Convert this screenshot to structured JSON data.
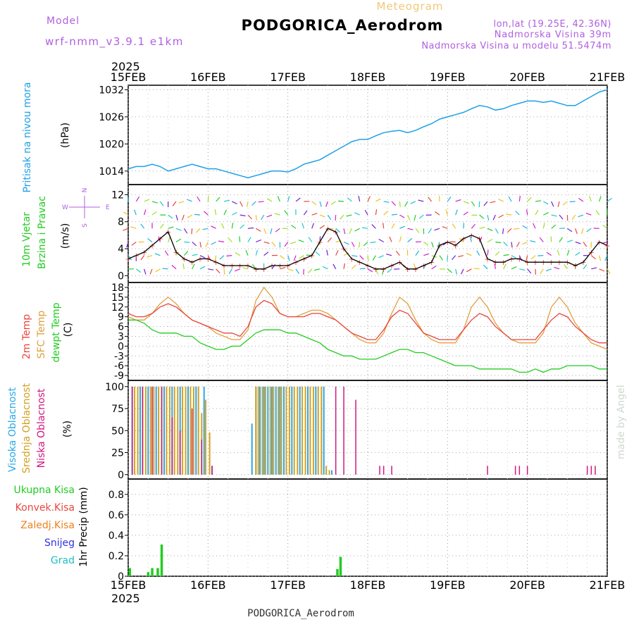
{
  "header": {
    "meteogram_label": "Meteogram",
    "station_title": "PODGORICA_Aerodrom",
    "model_label": "Model",
    "model_name": "wrf-nmm_v3.9.1 e1km",
    "lonlat": "lon,lat (19.25E, 42.36N)",
    "elevation": "Nadmorska Visina 39m",
    "model_elevation": "Nadmorska Visina u modelu 51.5474m",
    "year_top": "2025",
    "year_bottom": "2025",
    "footer_title": "PODGORICA_Aerodrom",
    "credit": "made by Angel"
  },
  "compass": {
    "n": "N",
    "s": "S",
    "w": "W",
    "e": "E"
  },
  "colors": {
    "pressure": "#1ea0e6",
    "wind_speed": "#000000",
    "temp2m": "#e8463c",
    "sfc_temp": "#e0a040",
    "dewpoint": "#22cc22",
    "high_cloud": "#2aa8e8",
    "mid_cloud": "#d4a020",
    "low_cloud": "#d01880",
    "total_precip": "#22cc22",
    "conv_precip": "#e8463c",
    "freezing_precip": "#f08020",
    "snow": "#3030e0",
    "hail": "#20c0c0"
  },
  "x_axis": {
    "ticks": [
      "15FEB",
      "16FEB",
      "17FEB",
      "18FEB",
      "19FEB",
      "20FEB",
      "21FEB"
    ]
  },
  "panels": {
    "pressure": {
      "label_1": "Pritisak na nivou mora",
      "unit": "(hPa)"
    },
    "wind": {
      "label_1": "10m Vjetar",
      "label_2": "Brzina i Pravac",
      "unit": "(m/s)"
    },
    "temp": {
      "label_1": "2m Temp",
      "label_2": "SFC Temp",
      "label_3": "dewpt Temp",
      "unit": "(C)"
    },
    "cloud": {
      "label_1": "Visoka Oblacnost",
      "label_2": "Srednja Oblacnost",
      "label_3": "Niska Oblacnost",
      "unit": "(%)"
    },
    "precip": {
      "unit": "1hr Precip (mm)",
      "legend": [
        "Ukupna Kisa",
        "Konvek.Kisa",
        "Zaledj.Kisa",
        "Snijeg",
        "Grad"
      ]
    }
  },
  "chart_data": {
    "type": "line",
    "x_unit": "days since 15FEB 00:00",
    "pressure": {
      "ylim": [
        1011,
        1033
      ],
      "yticks": [
        "1014",
        "1020",
        "1026",
        "1032"
      ],
      "x": [
        0,
        0.1,
        0.2,
        0.3,
        0.4,
        0.5,
        0.6,
        0.7,
        0.8,
        0.9,
        1.0,
        1.1,
        1.2,
        1.3,
        1.4,
        1.5,
        1.6,
        1.7,
        1.8,
        1.9,
        2.0,
        2.1,
        2.2,
        2.3,
        2.4,
        2.5,
        2.6,
        2.7,
        2.8,
        2.9,
        3.0,
        3.1,
        3.2,
        3.3,
        3.4,
        3.5,
        3.6,
        3.7,
        3.8,
        3.9,
        4.0,
        4.1,
        4.2,
        4.3,
        4.4,
        4.5,
        4.6,
        4.7,
        4.8,
        4.9,
        5.0,
        5.1,
        5.2,
        5.3,
        5.4,
        5.5,
        5.6,
        5.7,
        5.8,
        5.9,
        6.0
      ],
      "values": [
        1014.5,
        1015,
        1015,
        1015.5,
        1015,
        1014,
        1014.5,
        1015,
        1015.5,
        1015,
        1014.5,
        1014.5,
        1014,
        1013.5,
        1013,
        1012.5,
        1013,
        1013.5,
        1014,
        1014,
        1013.8,
        1014.5,
        1015.5,
        1016,
        1016.5,
        1017.5,
        1018.5,
        1019.5,
        1020.5,
        1021,
        1021,
        1021.8,
        1022.5,
        1022.8,
        1023,
        1022.5,
        1023,
        1023.8,
        1024.5,
        1025.5,
        1026,
        1026.5,
        1027,
        1027.8,
        1028.5,
        1028.2,
        1027.5,
        1027.8,
        1028.5,
        1029,
        1029.5,
        1029.5,
        1029.2,
        1029.5,
        1029,
        1028.5,
        1028.5,
        1029.5,
        1030.5,
        1031.5,
        1032
      ]
    },
    "wind_speed": {
      "ylim": [
        -1,
        13.5
      ],
      "yticks": [
        "0",
        "4",
        "8",
        "12"
      ],
      "x": [
        0,
        0.1,
        0.2,
        0.3,
        0.4,
        0.5,
        0.6,
        0.7,
        0.8,
        0.9,
        1.0,
        1.1,
        1.2,
        1.3,
        1.4,
        1.5,
        1.6,
        1.7,
        1.8,
        1.9,
        2.0,
        2.1,
        2.2,
        2.3,
        2.4,
        2.5,
        2.6,
        2.7,
        2.8,
        2.9,
        3.0,
        3.1,
        3.2,
        3.3,
        3.4,
        3.5,
        3.6,
        3.7,
        3.8,
        3.9,
        4.0,
        4.1,
        4.2,
        4.3,
        4.4,
        4.5,
        4.6,
        4.7,
        4.8,
        4.9,
        5.0,
        5.1,
        5.2,
        5.3,
        5.4,
        5.5,
        5.6,
        5.7,
        5.8,
        5.9,
        6.0
      ],
      "values": [
        2.5,
        3,
        3.5,
        4.5,
        5.5,
        6.5,
        3.5,
        2.5,
        2,
        2.5,
        2.5,
        2,
        1.5,
        1.5,
        1.5,
        1.5,
        1,
        1,
        1.5,
        1.5,
        1.5,
        2,
        2.5,
        3,
        5,
        7,
        6.5,
        4,
        2.5,
        2,
        1.5,
        1,
        1,
        1.5,
        2,
        1,
        1,
        1.5,
        2,
        4.5,
        5,
        4.5,
        5.5,
        6,
        5.5,
        2.5,
        2,
        2,
        2.5,
        2.5,
        2,
        2,
        2,
        2,
        2,
        2,
        1.5,
        2,
        3.5,
        5,
        4.5
      ]
    },
    "sfc_temp": {
      "ylim": [
        -10.5,
        19.5
      ],
      "yticks": [
        "18",
        "15",
        "12",
        "9",
        "6",
        "3",
        "0",
        "-3",
        "-6",
        "-9"
      ],
      "x": [
        0,
        0.1,
        0.2,
        0.3,
        0.4,
        0.5,
        0.6,
        0.7,
        0.8,
        0.9,
        1.0,
        1.1,
        1.2,
        1.3,
        1.4,
        1.5,
        1.6,
        1.7,
        1.8,
        1.9,
        2.0,
        2.1,
        2.2,
        2.3,
        2.4,
        2.5,
        2.6,
        2.7,
        2.8,
        2.9,
        3.0,
        3.1,
        3.2,
        3.3,
        3.4,
        3.5,
        3.6,
        3.7,
        3.8,
        3.9,
        4.0,
        4.1,
        4.2,
        4.3,
        4.4,
        4.5,
        4.6,
        4.7,
        4.8,
        4.9,
        5.0,
        5.1,
        5.2,
        5.3,
        5.4,
        5.5,
        5.6,
        5.7,
        5.8,
        5.9,
        6.0
      ],
      "values": [
        9,
        8,
        8,
        10,
        13,
        15,
        13,
        10,
        8,
        7,
        6,
        4,
        3,
        2,
        2,
        5,
        14,
        18,
        15,
        10,
        9,
        9,
        10,
        11,
        11,
        10,
        8,
        6,
        4,
        2,
        1,
        1,
        4,
        10,
        15,
        13,
        8,
        4,
        2,
        1,
        1,
        1,
        5,
        12,
        15,
        12,
        7,
        4,
        2,
        1,
        1,
        1,
        4,
        12,
        15,
        12,
        7,
        4,
        1,
        0,
        -1
      ]
    },
    "temp_2m": {
      "x": [
        0,
        0.1,
        0.2,
        0.3,
        0.4,
        0.5,
        0.6,
        0.7,
        0.8,
        0.9,
        1.0,
        1.1,
        1.2,
        1.3,
        1.4,
        1.5,
        1.6,
        1.7,
        1.8,
        1.9,
        2.0,
        2.1,
        2.2,
        2.3,
        2.4,
        2.5,
        2.6,
        2.7,
        2.8,
        2.9,
        3.0,
        3.1,
        3.2,
        3.3,
        3.4,
        3.5,
        3.6,
        3.7,
        3.8,
        3.9,
        4.0,
        4.1,
        4.2,
        4.3,
        4.4,
        4.5,
        4.6,
        4.7,
        4.8,
        4.9,
        5.0,
        5.1,
        5.2,
        5.3,
        5.4,
        5.5,
        5.6,
        5.7,
        5.8,
        5.9,
        6.0
      ],
      "values": [
        10,
        9,
        9,
        10,
        12,
        13,
        12,
        10,
        8,
        7,
        6,
        5,
        4,
        4,
        3,
        6,
        12,
        14,
        13,
        10,
        9,
        9,
        9,
        10,
        10,
        9,
        8,
        6,
        4,
        3,
        2,
        2,
        5,
        9,
        11,
        10,
        7,
        4,
        3,
        2,
        2,
        2,
        5,
        8,
        10,
        9,
        6,
        4,
        2,
        2,
        2,
        2,
        5,
        8,
        10,
        9,
        6,
        4,
        2,
        1,
        1
      ]
    },
    "dewpoint": {
      "x": [
        0,
        0.1,
        0.2,
        0.3,
        0.4,
        0.5,
        0.6,
        0.7,
        0.8,
        0.9,
        1.0,
        1.1,
        1.2,
        1.3,
        1.4,
        1.5,
        1.6,
        1.7,
        1.8,
        1.9,
        2.0,
        2.1,
        2.2,
        2.3,
        2.4,
        2.5,
        2.6,
        2.7,
        2.8,
        2.9,
        3.0,
        3.1,
        3.2,
        3.3,
        3.4,
        3.5,
        3.6,
        3.7,
        3.8,
        3.9,
        4.0,
        4.1,
        4.2,
        4.3,
        4.4,
        4.5,
        4.6,
        4.7,
        4.8,
        4.9,
        5.0,
        5.1,
        5.2,
        5.3,
        5.4,
        5.5,
        5.6,
        5.7,
        5.8,
        5.9,
        6.0
      ],
      "values": [
        8,
        8,
        7,
        5,
        4,
        4,
        4,
        3,
        3,
        1,
        0,
        -1,
        -1,
        0,
        0,
        2,
        4,
        5,
        5,
        5,
        4,
        4,
        3,
        2,
        1,
        -1,
        -2,
        -3,
        -3,
        -4,
        -4,
        -4,
        -3,
        -2,
        -1,
        -1,
        -2,
        -2,
        -3,
        -4,
        -5,
        -6,
        -6,
        -6,
        -7,
        -7,
        -7,
        -7,
        -7,
        -8,
        -8,
        -7,
        -8,
        -7,
        -7,
        -6,
        -6,
        -6,
        -6,
        -7,
        -7
      ]
    },
    "clouds": {
      "ylim": [
        -5,
        107
      ],
      "yticks": [
        "0",
        "25",
        "50",
        "75",
        "100"
      ],
      "high": {
        "x": [
          0.05,
          0.15,
          0.25,
          0.35,
          0.45,
          0.55,
          0.65,
          0.75,
          0.85,
          0.95,
          1.05,
          1.55,
          1.6,
          1.65,
          1.7,
          1.75,
          1.8,
          1.85,
          1.9,
          1.95,
          2.05,
          2.15,
          2.25,
          2.35,
          2.45,
          2.55
        ],
        "values": [
          100,
          100,
          100,
          100,
          100,
          100,
          100,
          100,
          100,
          100,
          10,
          58,
          100,
          100,
          100,
          100,
          100,
          100,
          100,
          100,
          100,
          100,
          100,
          100,
          100,
          5
        ]
      },
      "mid": {
        "x": [
          0.08,
          0.12,
          0.18,
          0.22,
          0.28,
          0.32,
          0.38,
          0.42,
          0.48,
          0.52,
          0.58,
          0.62,
          0.68,
          0.72,
          0.78,
          0.82,
          0.88,
          0.92,
          0.97,
          1.02,
          1.6,
          1.63,
          1.68,
          1.72,
          1.78,
          1.82,
          1.88,
          1.92,
          1.98,
          2.02,
          2.08,
          2.12,
          2.18,
          2.22,
          2.28,
          2.32,
          2.38,
          2.42,
          2.48,
          2.52
        ],
        "values": [
          100,
          100,
          100,
          100,
          100,
          100,
          100,
          100,
          100,
          100,
          100,
          100,
          100,
          100,
          100,
          100,
          100,
          70,
          85,
          48,
          100,
          100,
          100,
          100,
          100,
          100,
          100,
          100,
          100,
          100,
          100,
          100,
          100,
          100,
          100,
          100,
          100,
          100,
          10,
          5
        ]
      },
      "low": {
        "x": [
          0.05,
          0.18,
          0.3,
          0.42,
          0.55,
          0.65,
          0.8,
          0.92,
          1.05,
          2.6,
          2.7,
          2.85,
          3.15,
          3.2,
          3.3,
          4.5,
          4.85,
          4.9,
          5.0,
          5.75,
          5.8,
          5.85
        ],
        "values": [
          100,
          100,
          100,
          100,
          65,
          50,
          75,
          40,
          10,
          100,
          100,
          85,
          10,
          10,
          10,
          10,
          10,
          10,
          10,
          10,
          10,
          10
        ]
      }
    },
    "precip": {
      "ylim": [
        0,
        0.95
      ],
      "yticks": [
        "0",
        "0.2",
        "0.4",
        "0.6",
        "0.8"
      ],
      "total": {
        "x": [
          0.02,
          0.25,
          0.3,
          0.37,
          0.42,
          2.62,
          2.66
        ],
        "values": [
          0.08,
          0.04,
          0.08,
          0.08,
          0.31,
          0.07,
          0.19
        ]
      }
    }
  }
}
